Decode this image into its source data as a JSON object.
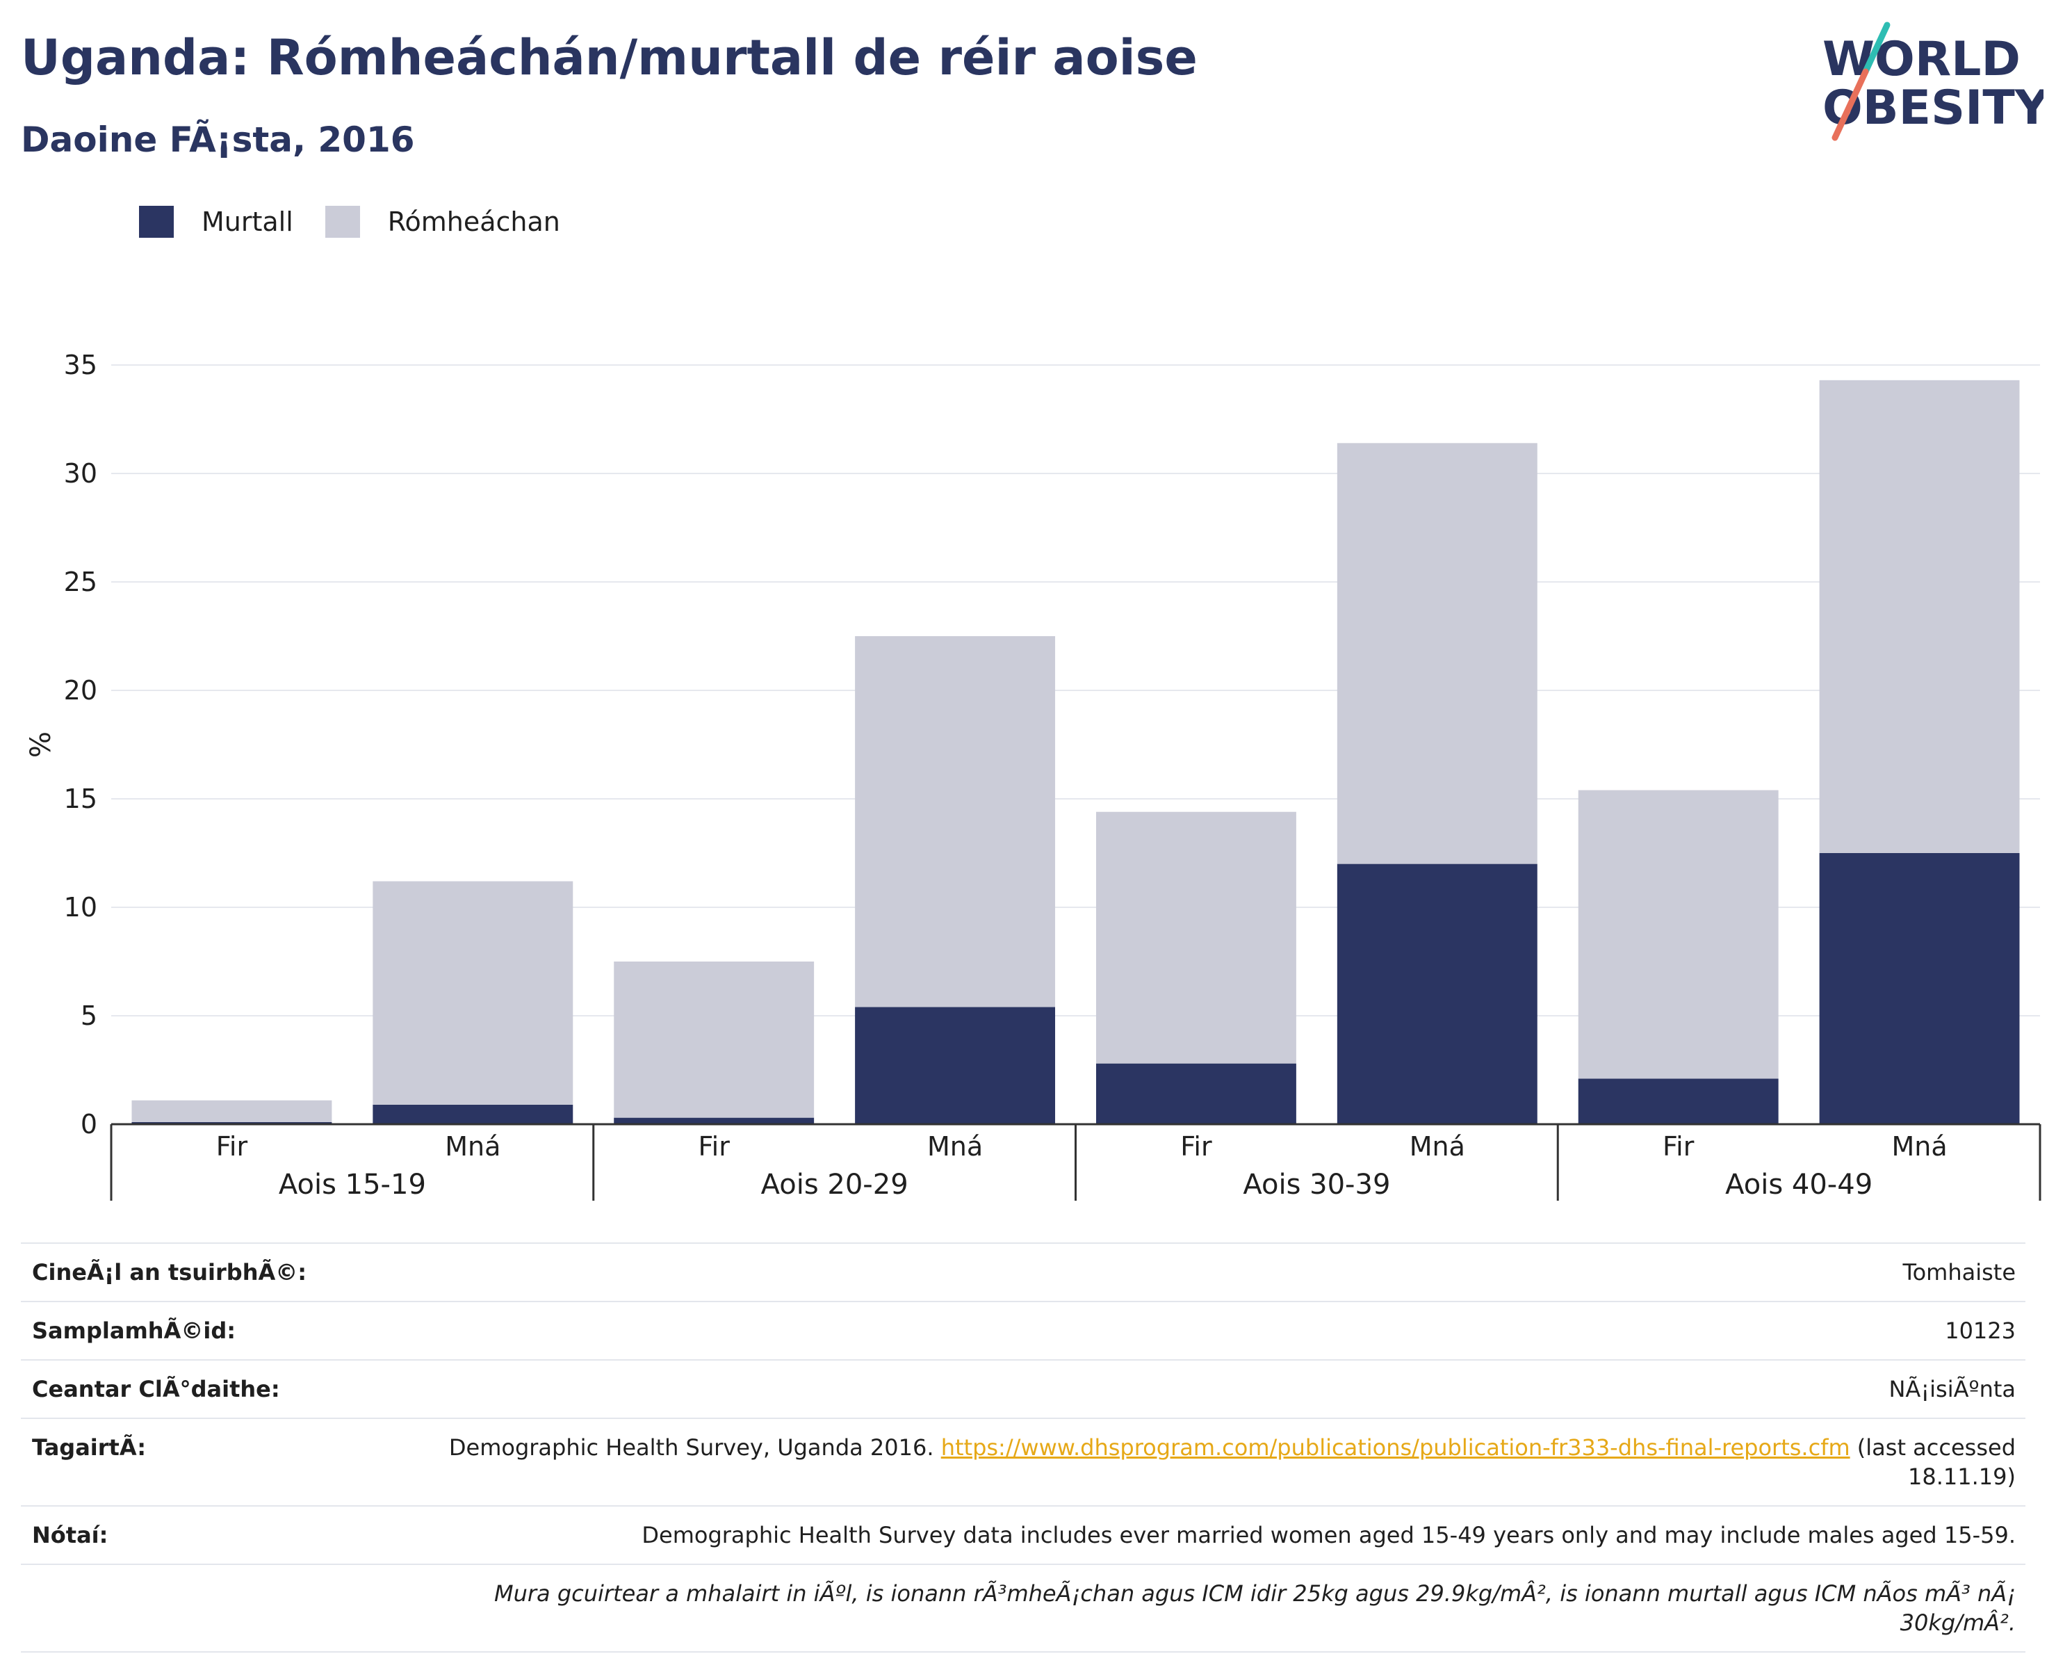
{
  "header": {
    "title": "Uganda: Rómheáchán/murtall de réir aoise",
    "subtitle": "Daoine FÃ¡sta, 2016"
  },
  "logo": {
    "line1": "WORLD",
    "line2": "OBESITY"
  },
  "colors": {
    "murtall": "#2b3562",
    "romheachan": "#cbccd8",
    "title": "#2a3560",
    "grid": "#e6e8ee",
    "axis": "#333333"
  },
  "chart_data": {
    "type": "bar",
    "stacked": true,
    "ylabel": "%",
    "ylim": [
      0,
      35
    ],
    "yticks": [
      0,
      5,
      10,
      15,
      20,
      25,
      30,
      35
    ],
    "grid": true,
    "legend_position": "top-left",
    "legend": [
      "Murtall",
      "Rómheáchan"
    ],
    "categories": [
      "Fir",
      "Mná",
      "Fir",
      "Mná",
      "Fir",
      "Mná",
      "Fir",
      "Mná"
    ],
    "groups": [
      {
        "label": "Aois 15-19",
        "categories": [
          "Fir",
          "Mná"
        ]
      },
      {
        "label": "Aois 20-29",
        "categories": [
          "Fir",
          "Mná"
        ]
      },
      {
        "label": "Aois 30-39",
        "categories": [
          "Fir",
          "Mná"
        ]
      },
      {
        "label": "Aois 40-49",
        "categories": [
          "Fir",
          "Mná"
        ]
      }
    ],
    "series": [
      {
        "name": "Murtall",
        "color": "#2b3562",
        "values": [
          0.1,
          0.9,
          0.3,
          5.4,
          2.8,
          12.0,
          2.1,
          12.5
        ]
      },
      {
        "name": "Rómheáchan",
        "color": "#cbccd8",
        "values": [
          1.0,
          10.3,
          7.2,
          17.1,
          11.6,
          19.4,
          13.3,
          21.8
        ]
      }
    ]
  },
  "meta": {
    "survey_type_label": "CineÃ¡l an tsuirbhÃ©:",
    "survey_type_value": "Tomhaiste",
    "sample_size_label": "SamplamhÃ©id:",
    "sample_size_value": "10123",
    "area_label": "Ceantar ClÃ°daithe:",
    "area_value": "NÃ¡isiÃºnta",
    "reference_label": "TagairtÃ:",
    "reference_text": "Demographic Health Survey, Uganda 2016.",
    "reference_link": "https://www.dhsprogram.com/publications/publication-fr333-dhs-final-reports.cfm",
    "reference_suffix": "(last accessed 18.11.19)",
    "notes_label": "Nótaí:",
    "notes_text": "Demographic Health Survey data includes ever married women aged 15-49 years only and may include males aged 15-59.",
    "notes_definition": "Mura gcuirtear a mhalairt in iÃºl, is ionann rÃ³mheÃ¡chan agus ICM idir 25kg agus 29.9kg/mÂ², is ionann murtall agus ICM nÃ­os mÃ³ nÃ¡ 30kg/mÂ²."
  }
}
